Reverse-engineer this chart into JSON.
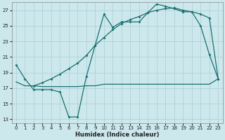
{
  "xlabel": "Humidex (Indice chaleur)",
  "bg_color": "#cce8ec",
  "grid_color": "#aacdd4",
  "line_color": "#1a7070",
  "xlim": [
    -0.5,
    23.5
  ],
  "ylim": [
    12.5,
    28.0
  ],
  "xticks": [
    0,
    1,
    2,
    3,
    4,
    5,
    6,
    7,
    8,
    9,
    10,
    11,
    12,
    13,
    14,
    15,
    16,
    17,
    18,
    19,
    20,
    21,
    22,
    23
  ],
  "yticks": [
    13,
    15,
    17,
    19,
    21,
    23,
    25,
    27
  ],
  "curve1_x": [
    0,
    1,
    2,
    3,
    4,
    5,
    6,
    7,
    8,
    9,
    10,
    11,
    12,
    13,
    14,
    15,
    16,
    17,
    18,
    19,
    20,
    21,
    22,
    23
  ],
  "curve1_y": [
    20.0,
    18.2,
    16.8,
    16.8,
    16.8,
    16.5,
    13.3,
    13.3,
    18.5,
    22.5,
    26.5,
    24.8,
    25.5,
    25.5,
    25.5,
    26.7,
    27.8,
    27.5,
    27.2,
    26.8,
    26.8,
    25.0,
    21.3,
    18.2
  ],
  "curve2_x": [
    0,
    1,
    2,
    3,
    4,
    5,
    6,
    7,
    8,
    9,
    10,
    11,
    12,
    13,
    14,
    15,
    16,
    17,
    18,
    19,
    20,
    21,
    22,
    23
  ],
  "curve2_y": [
    17.8,
    17.3,
    17.3,
    17.2,
    17.2,
    17.2,
    17.2,
    17.2,
    17.3,
    17.3,
    17.5,
    17.5,
    17.5,
    17.5,
    17.5,
    17.5,
    17.5,
    17.5,
    17.5,
    17.5,
    17.5,
    17.5,
    17.5,
    18.2
  ],
  "curve3_x": [
    2,
    3,
    4,
    5,
    6,
    7,
    8,
    9,
    10,
    11,
    12,
    13,
    14,
    15,
    16,
    17,
    18,
    19,
    20,
    21,
    22,
    23
  ],
  "curve3_y": [
    17.3,
    17.7,
    18.2,
    18.8,
    19.5,
    20.2,
    21.2,
    22.5,
    23.5,
    24.5,
    25.3,
    25.8,
    26.2,
    26.7,
    27.0,
    27.2,
    27.3,
    27.0,
    26.8,
    26.5,
    26.0,
    18.2
  ]
}
